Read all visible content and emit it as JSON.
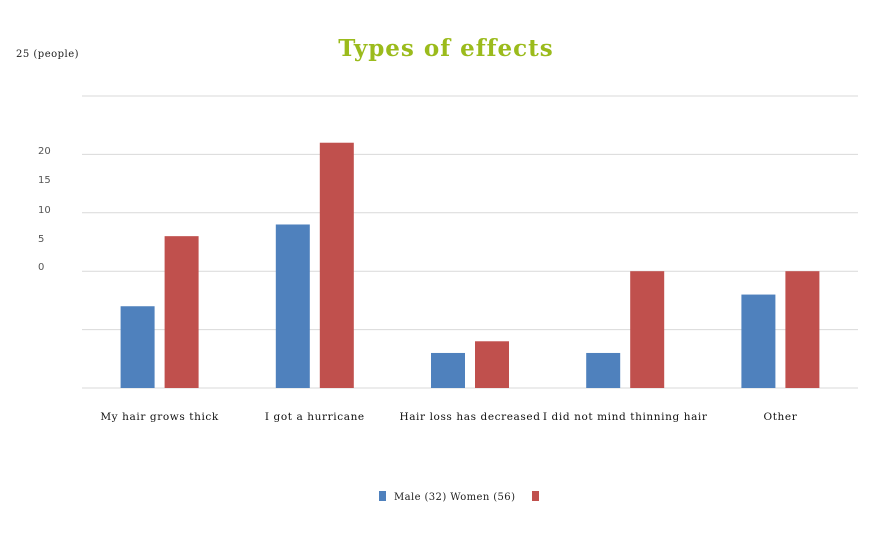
{
  "chart_data": {
    "type": "bar",
    "title": "Types of effects",
    "ylabel": "25 (people)",
    "yticks": [
      "20",
      "15",
      "10",
      "5",
      "0"
    ],
    "ylim": [
      0,
      25
    ],
    "categories": [
      "My hair grows thick",
      "I got a hurricane",
      "Hair loss has decreased",
      "I did not mind thinning hair",
      "Other"
    ],
    "series": [
      {
        "name": "Male (32)",
        "color": "#4f81bd",
        "values": [
          7,
          14,
          3,
          3,
          8
        ]
      },
      {
        "name": "Women (56)",
        "color": "#c0504d",
        "values": [
          13,
          21,
          4,
          10,
          10
        ]
      }
    ],
    "legend": {
      "position": "bottom",
      "text": "Male (32) Women (56)"
    },
    "grid": true
  }
}
